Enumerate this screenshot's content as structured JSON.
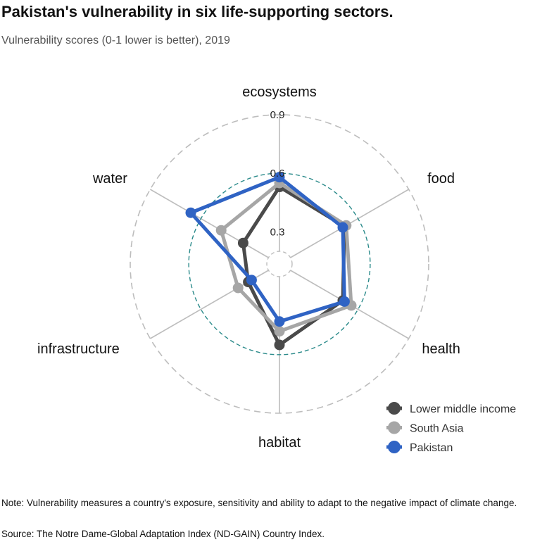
{
  "title": "Pakistan's vulnerability in six life-supporting sectors.",
  "subtitle": "Vulnerability scores (0-1 lower is better), 2019",
  "note": "Note: Vulnerability measures a country's exposure, sensitivity and ability to adapt to the negative impact of climate change.",
  "source": "Source: The Notre Dame-Global Adaptation Index (ND-GAIN) Country Index.",
  "chart_data": {
    "type": "radar",
    "axes": [
      "ecosystems",
      "food",
      "health",
      "habitat",
      "infrastructure",
      "water"
    ],
    "r_min": 0.2,
    "r_max": 0.9,
    "ticks": [
      0.3,
      0.6,
      0.9
    ],
    "tick_labels": [
      "0.3",
      "0.6",
      "0.9"
    ],
    "reference_circle": 0.6,
    "legend_position": "bottom-right",
    "series": [
      {
        "name": "Lower middle income",
        "color": "#4a4a4a",
        "values": [
          0.53,
          0.52,
          0.51,
          0.55,
          0.32,
          0.35
        ]
      },
      {
        "name": "South Asia",
        "color": "#a6a6a6",
        "values": [
          0.55,
          0.53,
          0.56,
          0.48,
          0.38,
          0.48
        ]
      },
      {
        "name": "Pakistan",
        "color": "#2f63c4",
        "values": [
          0.58,
          0.51,
          0.52,
          0.43,
          0.3,
          0.66
        ]
      }
    ]
  }
}
